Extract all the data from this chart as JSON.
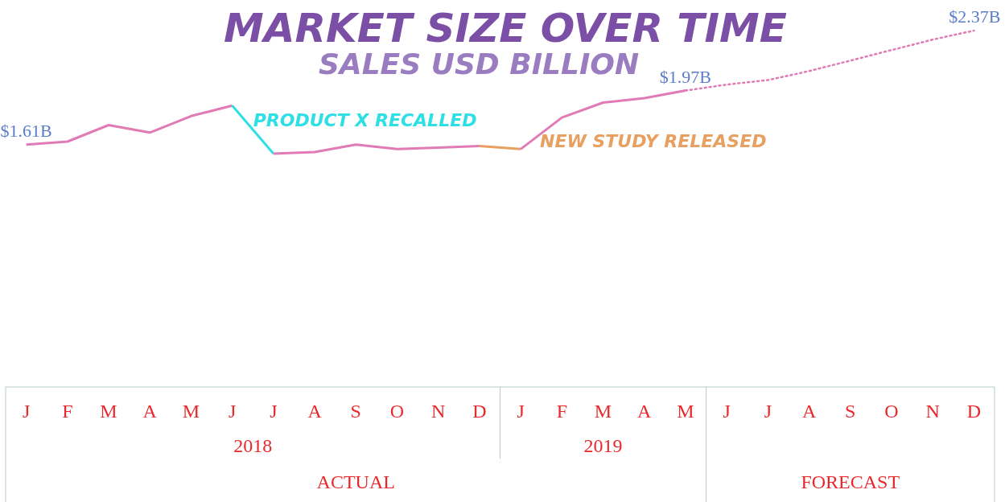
{
  "chart_data": {
    "type": "line",
    "title": "MARKET SIZE OVER TIME",
    "subtitle": "SALES USD BILLION",
    "categories": [
      "J",
      "F",
      "M",
      "A",
      "M",
      "J",
      "J",
      "A",
      "S",
      "O",
      "N",
      "D",
      "J",
      "F",
      "M",
      "A",
      "M",
      "J",
      "J",
      "A",
      "S",
      "O",
      "N",
      "D"
    ],
    "tick_labels": "x",
    "grid": false,
    "marker": "none",
    "series": [
      {
        "color": "#e07bb5",
        "line_style": "solid",
        "values": [
          1.61,
          1.63,
          1.74,
          1.69,
          1.8,
          1.87,
          null,
          null,
          null,
          null,
          null,
          null,
          null,
          null,
          null,
          null,
          null,
          null,
          null,
          null,
          null,
          null,
          null,
          null
        ],
        "value_labels": [
          "$1.61B",
          null,
          null,
          null,
          null,
          null,
          null,
          null,
          null,
          null,
          null,
          null,
          null,
          null,
          null,
          null,
          null,
          null,
          null,
          null,
          null,
          null,
          null,
          null
        ]
      },
      {
        "color": "#2ee0e6",
        "line_style": "solid",
        "values": [
          null,
          null,
          null,
          null,
          null,
          1.87,
          1.55,
          null,
          null,
          null,
          null,
          null,
          null,
          null,
          null,
          null,
          null,
          null,
          null,
          null,
          null,
          null,
          null,
          null
        ]
      },
      {
        "color": "#e07bb5",
        "line_style": "solid",
        "values": [
          null,
          null,
          null,
          null,
          null,
          null,
          1.55,
          1.56,
          1.61,
          1.58,
          1.59,
          1.6,
          null,
          null,
          null,
          null,
          null,
          null,
          null,
          null,
          null,
          null,
          null,
          null
        ]
      },
      {
        "color": "#e8a060",
        "line_style": "solid",
        "values": [
          null,
          null,
          null,
          null,
          null,
          null,
          null,
          null,
          null,
          null,
          null,
          1.6,
          1.58,
          null,
          null,
          null,
          null,
          null,
          null,
          null,
          null,
          null,
          null,
          null
        ]
      },
      {
        "color": "#e07bb5",
        "line_style": "solid",
        "values": [
          null,
          null,
          null,
          null,
          null,
          null,
          null,
          null,
          null,
          null,
          null,
          null,
          1.58,
          1.79,
          1.89,
          1.92,
          1.97,
          null,
          null,
          null,
          null,
          null,
          null,
          null
        ],
        "value_labels": [
          null,
          null,
          null,
          null,
          null,
          null,
          null,
          null,
          null,
          null,
          null,
          null,
          null,
          null,
          null,
          null,
          "$1.97B",
          null,
          null,
          null,
          null,
          null,
          null,
          null
        ]
      },
      {
        "color": "#e07bb5",
        "line_style": "dotted",
        "values": [
          null,
          null,
          null,
          null,
          null,
          null,
          null,
          null,
          null,
          null,
          null,
          null,
          null,
          null,
          null,
          null,
          1.97,
          2.01,
          2.04,
          2.1,
          2.17,
          2.24,
          2.31,
          2.37
        ],
        "value_labels": [
          null,
          null,
          null,
          null,
          null,
          null,
          null,
          null,
          null,
          null,
          null,
          null,
          null,
          null,
          null,
          null,
          null,
          null,
          null,
          null,
          null,
          null,
          null,
          "$2.37B"
        ]
      }
    ],
    "annotations": [
      "PRODUCT X RECALLED",
      "NEW STUDY RELEASED",
      "2018",
      "2019",
      "ACTUAL",
      "FORECAST"
    ]
  }
}
